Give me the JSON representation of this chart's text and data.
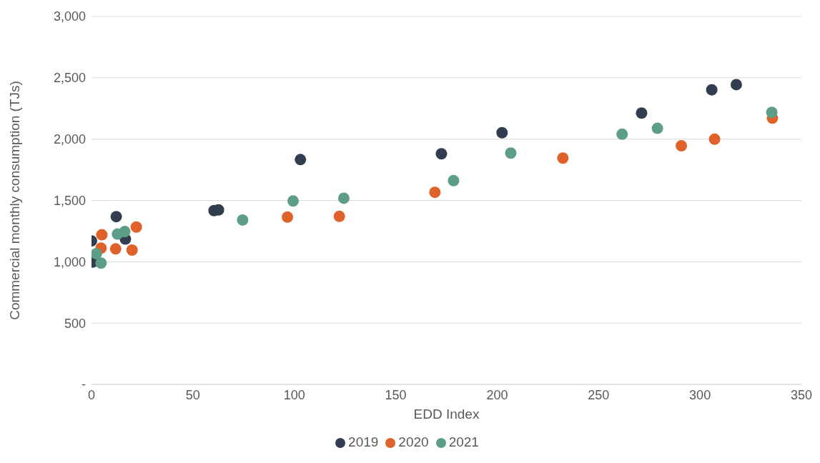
{
  "chart_data": {
    "type": "scatter",
    "xlabel": "EDD Index",
    "ylabel": "Commercial monthly consumption (TJs)",
    "xlim": [
      0,
      350
    ],
    "xticks": [
      0,
      50,
      100,
      150,
      200,
      250,
      300,
      350
    ],
    "ylim": [
      0,
      3000
    ],
    "yticks": [
      {
        "value": 0,
        "label": "-"
      },
      {
        "value": 500,
        "label": "500"
      },
      {
        "value": 1000,
        "label": "1,000"
      },
      {
        "value": 1500,
        "label": "1,500"
      },
      {
        "value": 2000,
        "label": "2,000"
      },
      {
        "value": 2500,
        "label": "2,500"
      },
      {
        "value": 3000,
        "label": "3,000"
      }
    ],
    "grid": "y",
    "legend": "bottom",
    "marker": "circle",
    "series": [
      {
        "name": "2019",
        "color": "#323e4f",
        "x": [
          0,
          0.6,
          12.2,
          16.7,
          60.4,
          62.6,
          103,
          172.5,
          202.4,
          271.2,
          305.8,
          317.9
        ],
        "values": [
          1170,
          998,
          1368,
          1185,
          1417,
          1423,
          1833,
          1880,
          2052,
          2212,
          2402,
          2444
        ]
      },
      {
        "name": "2020",
        "color": "#e0622a",
        "x": [
          5.1,
          4.7,
          11.9,
          20,
          22.1,
          96.6,
          122.2,
          169.3,
          232.4,
          290.8,
          307.2,
          335.7
        ],
        "values": [
          1220,
          1111,
          1105,
          1095,
          1283,
          1364,
          1370,
          1566,
          1845,
          1945,
          1999,
          2171
        ]
      },
      {
        "name": "2021",
        "color": "#5d9e87",
        "x": [
          2.4,
          4.7,
          12.8,
          16.4,
          74.5,
          99.4,
          124.4,
          178.5,
          206.7,
          261.6,
          279,
          335.4
        ],
        "values": [
          1066,
          989,
          1226,
          1246,
          1340,
          1495,
          1518,
          1661,
          1886,
          2040,
          2088,
          2218
        ]
      }
    ]
  }
}
